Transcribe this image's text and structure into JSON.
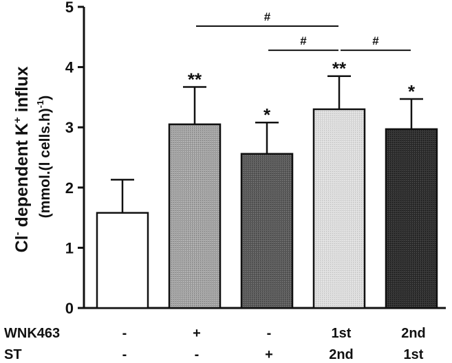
{
  "chart_data": {
    "type": "bar",
    "ylabel_prefix": "Cl",
    "ylabel_prefix_sup": "-",
    "ylabel_middle": " dependent K",
    "ylabel_middle_sup": "+",
    "ylabel_suffix": " influx",
    "ylabel_units": "(mmol.(l cells.h)",
    "ylabel_units_sup": "-1",
    "ylabel_units_close": ")",
    "ylim": [
      0,
      5
    ],
    "yticks": [
      0,
      1,
      2,
      3,
      4,
      5
    ],
    "bars": [
      {
        "value": 1.58,
        "error": 0.55,
        "fill": "#ffffff",
        "pattern": "none",
        "significance": ""
      },
      {
        "value": 3.05,
        "error": 0.62,
        "fill": "#9a9a9a",
        "pattern": "dots-light",
        "significance": "**"
      },
      {
        "value": 2.56,
        "error": 0.52,
        "fill": "#5a5a5a",
        "pattern": "dots-dark",
        "significance": "*"
      },
      {
        "value": 3.3,
        "error": 0.55,
        "fill": "#d6d6d6",
        "pattern": "dots-faint",
        "significance": "**"
      },
      {
        "value": 2.97,
        "error": 0.5,
        "fill": "#2e2e2e",
        "pattern": "dots-darkest",
        "significance": "*"
      }
    ],
    "comparisons": [
      {
        "from": 1,
        "to": 3,
        "level": 4.68,
        "label": "#"
      },
      {
        "from": 2,
        "to": 3,
        "level": 4.28,
        "label": "#"
      },
      {
        "from": 3,
        "to": 4,
        "level": 4.28,
        "label": "#"
      }
    ],
    "condition_rows": [
      {
        "label": "WNK463",
        "values": [
          "-",
          "+",
          "-",
          "1st",
          "2nd"
        ]
      },
      {
        "label": "ST",
        "values": [
          "-",
          "-",
          "+",
          "2nd",
          "1st"
        ]
      }
    ]
  }
}
